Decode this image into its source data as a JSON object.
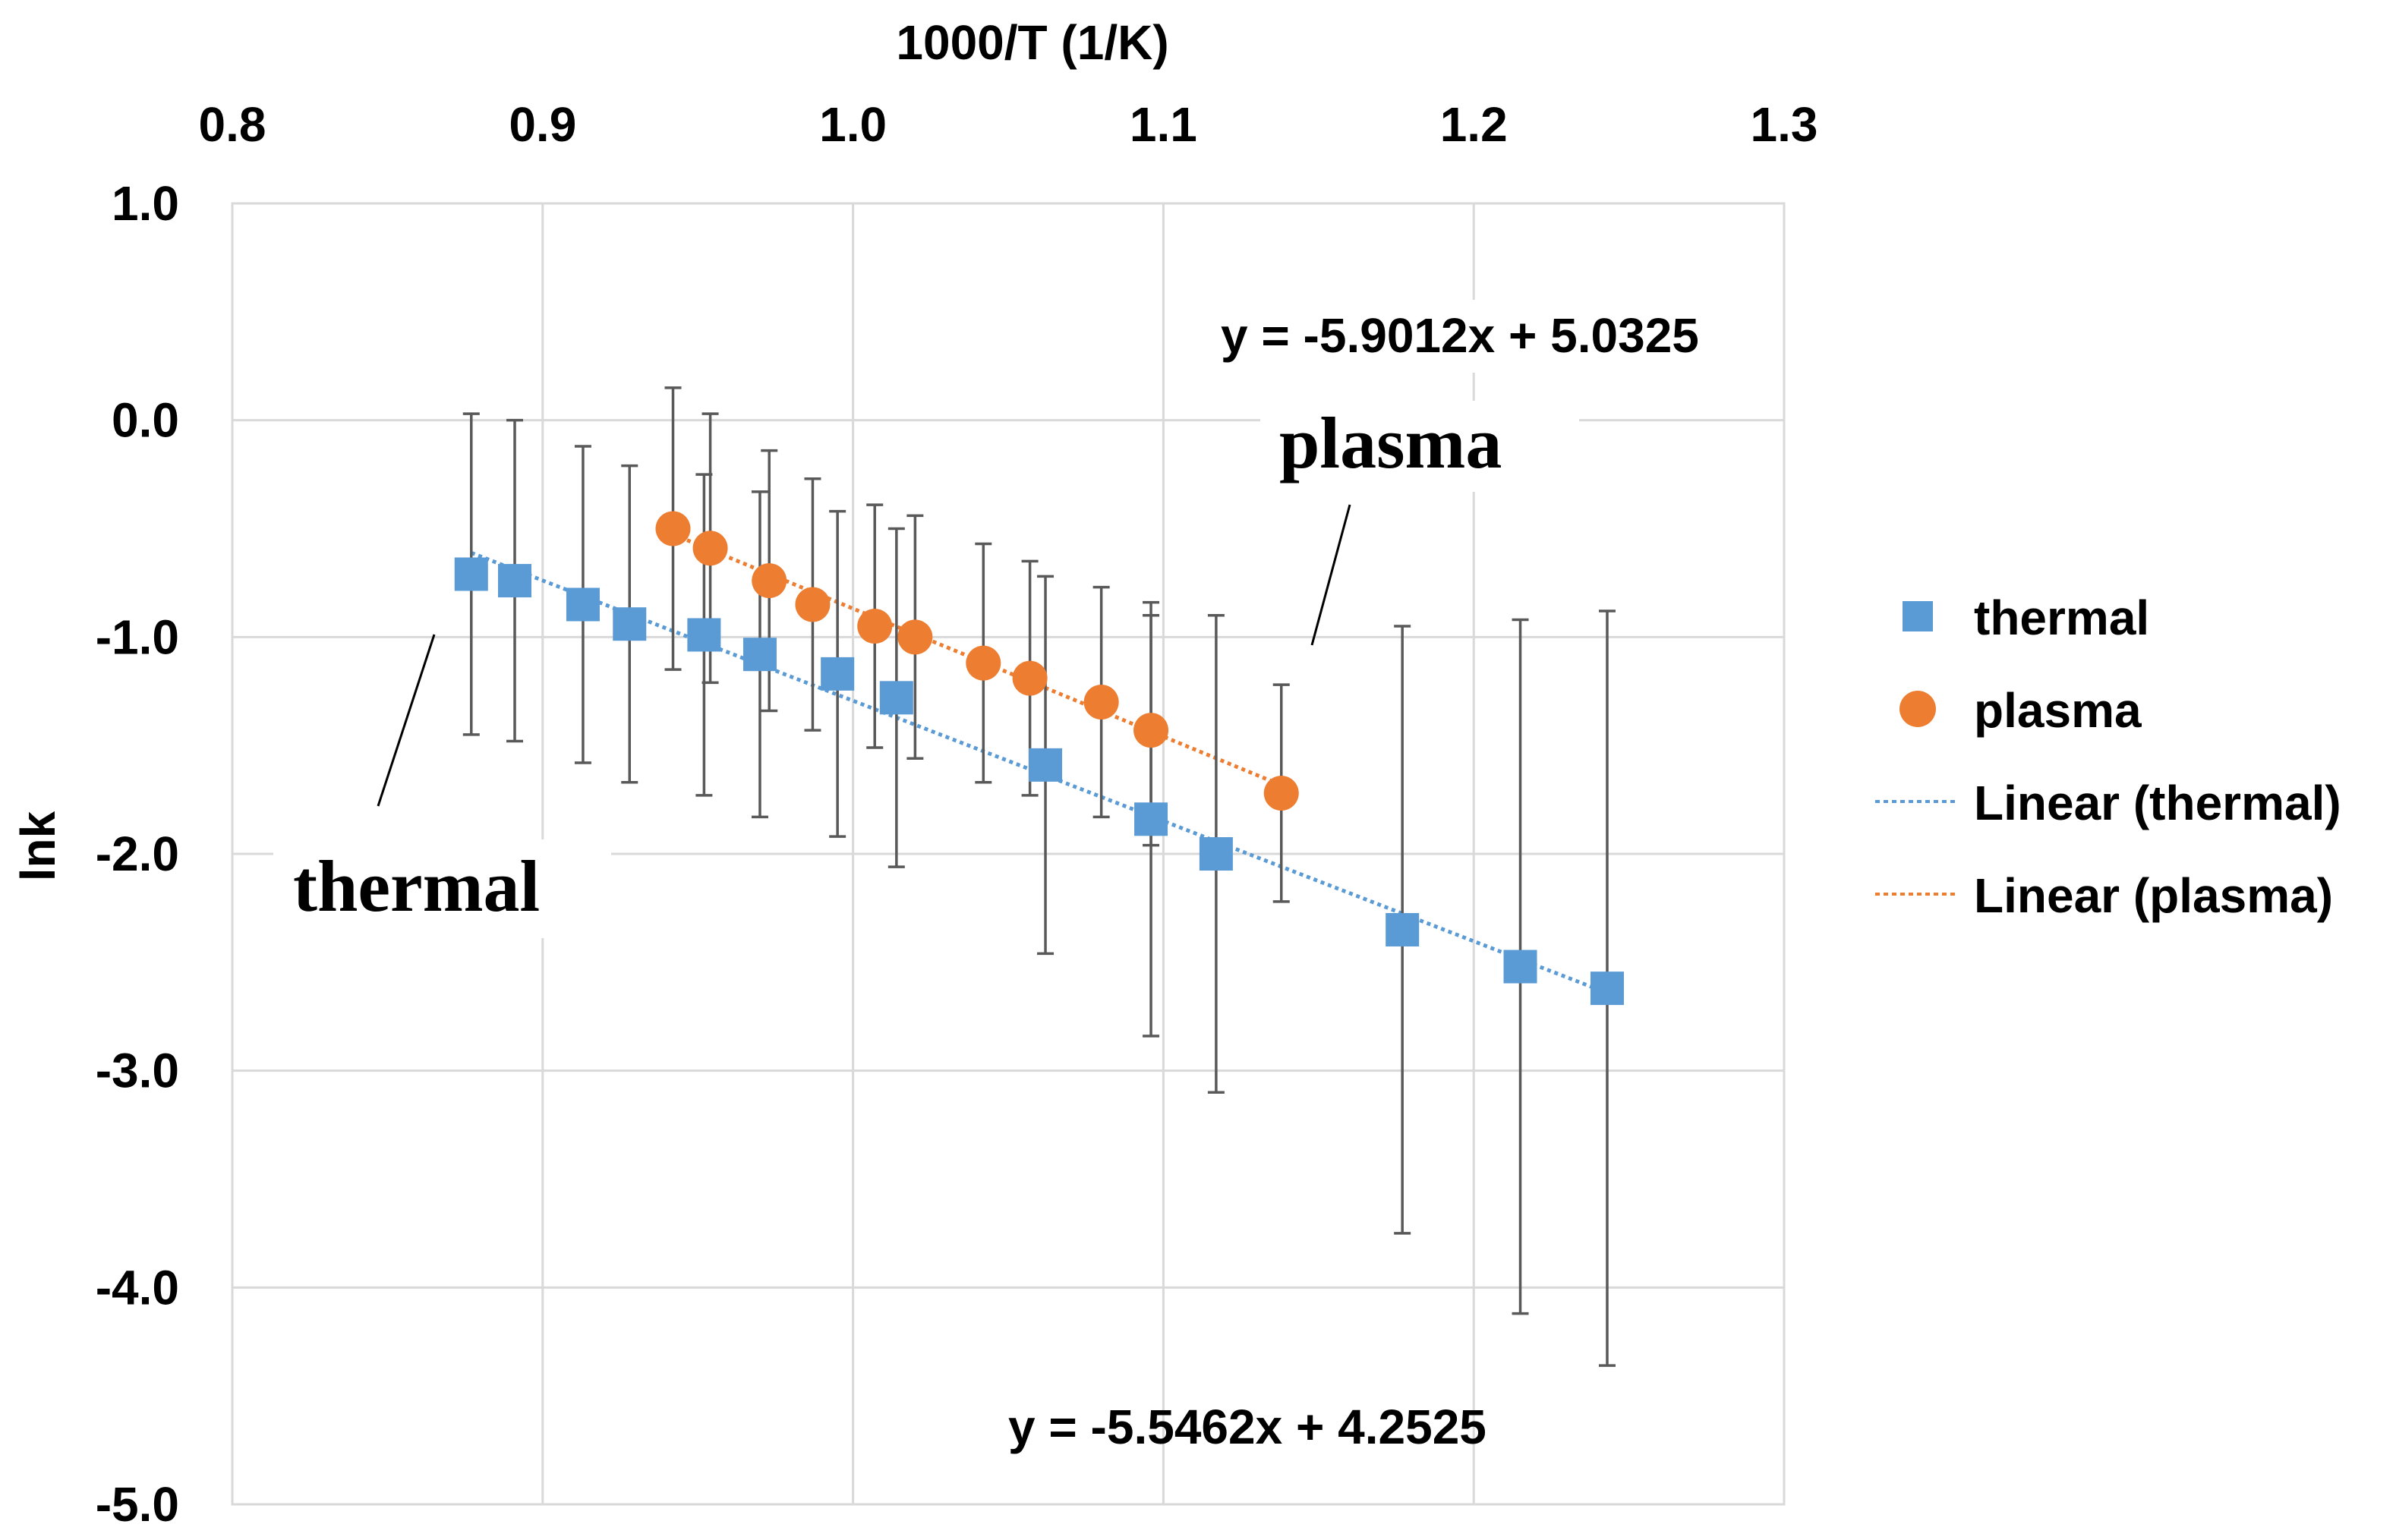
{
  "chart_data": {
    "type": "scatter",
    "xlabel": "1000/T (1/K)",
    "ylabel": "lnk",
    "xlim": [
      0.8,
      1.3
    ],
    "ylim": [
      -5.0,
      1.0
    ],
    "x_ticks": [
      "0.8",
      "0.9",
      "1.0",
      "1.1",
      "1.2",
      "1.3"
    ],
    "y_ticks": [
      "1.0",
      "0.0",
      "-1.0",
      "-2.0",
      "-3.0",
      "-4.0",
      "-5.0"
    ],
    "grid": true,
    "legend_position": "right",
    "series": [
      {
        "name": "thermal",
        "marker": "square",
        "color": "#5b9bd5",
        "points": [
          {
            "x": 0.877,
            "y": -0.71,
            "err": 0.74
          },
          {
            "x": 0.891,
            "y": -0.74,
            "err": 0.74
          },
          {
            "x": 0.913,
            "y": -0.85,
            "err": 0.73
          },
          {
            "x": 0.928,
            "y": -0.94,
            "err": 0.73
          },
          {
            "x": 0.952,
            "y": -0.99,
            "err": 0.74
          },
          {
            "x": 0.97,
            "y": -1.08,
            "err": 0.75
          },
          {
            "x": 0.995,
            "y": -1.17,
            "err": 0.75
          },
          {
            "x": 1.014,
            "y": -1.28,
            "err": 0.78
          },
          {
            "x": 1.062,
            "y": -1.59,
            "err": 0.87
          },
          {
            "x": 1.096,
            "y": -1.84,
            "err": 1.0
          },
          {
            "x": 1.117,
            "y": -2.0,
            "err": 1.1
          },
          {
            "x": 1.177,
            "y": -2.35,
            "err": 1.4
          },
          {
            "x": 1.215,
            "y": -2.52,
            "err": 1.6
          },
          {
            "x": 1.243,
            "y": -2.62,
            "err": 1.74
          }
        ]
      },
      {
        "name": "plasma",
        "marker": "circle",
        "color": "#ed7d31",
        "points": [
          {
            "x": 0.942,
            "y": -0.5,
            "err": 0.65
          },
          {
            "x": 0.954,
            "y": -0.59,
            "err": 0.62
          },
          {
            "x": 0.973,
            "y": -0.74,
            "err": 0.6
          },
          {
            "x": 0.987,
            "y": -0.85,
            "err": 0.58
          },
          {
            "x": 1.007,
            "y": -0.95,
            "err": 0.56
          },
          {
            "x": 1.02,
            "y": -1.0,
            "err": 0.56
          },
          {
            "x": 1.042,
            "y": -1.12,
            "err": 0.55
          },
          {
            "x": 1.057,
            "y": -1.19,
            "err": 0.54
          },
          {
            "x": 1.08,
            "y": -1.3,
            "err": 0.53
          },
          {
            "x": 1.096,
            "y": -1.43,
            "err": 0.53
          },
          {
            "x": 1.138,
            "y": -1.72,
            "err": 0.5
          }
        ]
      }
    ],
    "trendlines": [
      {
        "name": "Linear (thermal)",
        "color": "#5b9bd5",
        "slope": -5.5462,
        "intercept": 4.2525,
        "x_range": [
          0.877,
          1.243
        ],
        "equation": "y = -5.5462x + 4.2525"
      },
      {
        "name": "Linear (plasma)",
        "color": "#ed7d31",
        "slope": -5.9012,
        "intercept": 5.0325,
        "x_range": [
          0.942,
          1.138
        ],
        "equation": "y = -5.9012x + 5.0325"
      }
    ],
    "annotations": [
      {
        "text": "plasma"
      },
      {
        "text": "thermal"
      }
    ],
    "legend": [
      {
        "label": "thermal",
        "symbol": "square",
        "color": "#5b9bd5"
      },
      {
        "label": "plasma",
        "symbol": "circle",
        "color": "#ed7d31"
      },
      {
        "label": "Linear (thermal)",
        "symbol": "dotted-line",
        "color": "#5b9bd5"
      },
      {
        "label": "Linear (plasma)",
        "symbol": "dotted-line",
        "color": "#ed7d31"
      }
    ]
  }
}
